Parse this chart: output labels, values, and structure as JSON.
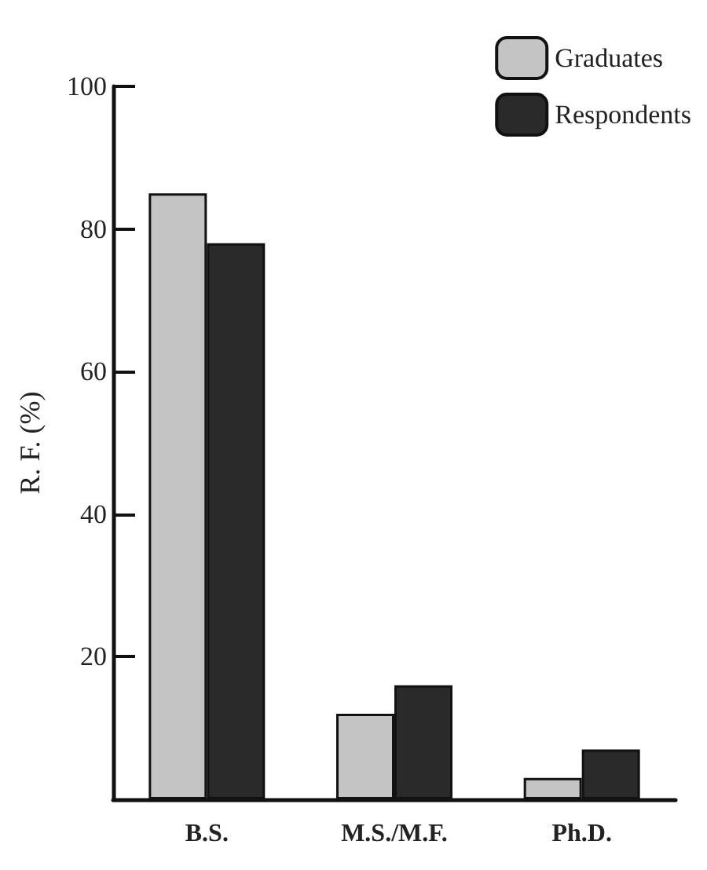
{
  "chart_data": {
    "type": "bar",
    "ylabel": "R. F. (%)",
    "categories": [
      "B.S.",
      "M.S./M.F.",
      "Ph.D."
    ],
    "series": [
      {
        "name": "Graduates",
        "color": "#c4c4c4",
        "values": [
          85,
          12,
          3
        ]
      },
      {
        "name": "Respondents",
        "color": "#2a2a2a",
        "values": [
          78,
          16,
          7
        ]
      }
    ],
    "ylim": [
      0,
      100
    ],
    "yticks": [
      20,
      40,
      60,
      80,
      100
    ],
    "grid": false,
    "legend": "top right"
  }
}
